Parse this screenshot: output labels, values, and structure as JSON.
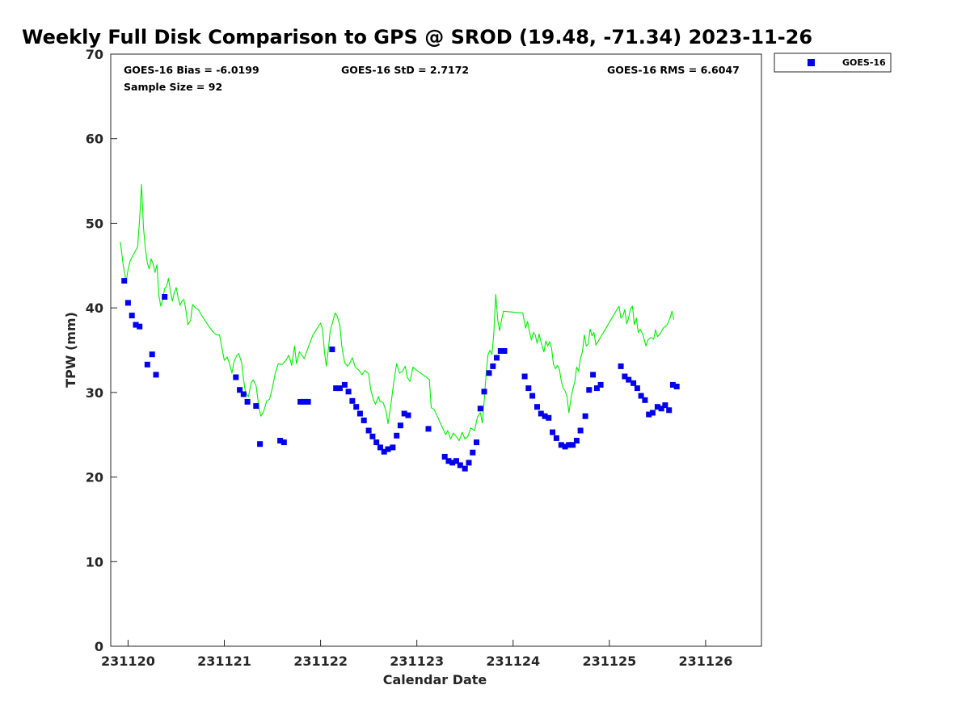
{
  "chart_data": {
    "type": "scatter",
    "title": "Weekly Full Disk Comparison to GPS @ SROD (19.48, -71.34) 2023-11-26",
    "xlabel": "Calendar Date",
    "ylabel": "TPW (mm)",
    "x_ticks": [
      "231120",
      "231121",
      "231122",
      "231123",
      "231124",
      "231125",
      "231126"
    ],
    "xlim": [
      -0.18,
      6.58
    ],
    "ylim": [
      0,
      70
    ],
    "y_ticks": [
      0,
      10,
      20,
      30,
      40,
      50,
      60,
      70
    ],
    "legend_position": "top-right",
    "stats": {
      "bias": "GOES-16 Bias = -6.0199",
      "std": "GOES-16 StD = 2.7172",
      "rms": "GOES-16 RMS = 6.6047",
      "sample": "Sample Size = 92"
    },
    "series": [
      {
        "name": "GOES-16",
        "kind": "markers",
        "color": "#0000ee",
        "points": [
          [
            -0.04,
            43.2
          ],
          [
            0,
            40.6
          ],
          [
            0.04,
            39.1
          ],
          [
            0.08,
            38.0
          ],
          [
            0.12,
            37.8
          ],
          [
            0.2,
            33.3
          ],
          [
            0.25,
            34.5
          ],
          [
            0.29,
            32.1
          ],
          [
            0.38,
            41.3
          ],
          [
            1.12,
            31.8
          ],
          [
            1.16,
            30.3
          ],
          [
            1.2,
            29.8
          ],
          [
            1.24,
            28.9
          ],
          [
            1.33,
            28.4
          ],
          [
            1.37,
            23.9
          ],
          [
            1.58,
            24.3
          ],
          [
            1.62,
            24.1
          ],
          [
            1.79,
            28.9
          ],
          [
            1.83,
            28.9
          ],
          [
            1.87,
            28.9
          ],
          [
            2.12,
            35.1
          ],
          [
            2.16,
            30.5
          ],
          [
            2.2,
            30.5
          ],
          [
            2.25,
            30.9
          ],
          [
            2.29,
            30.1
          ],
          [
            2.33,
            29.0
          ],
          [
            2.37,
            28.3
          ],
          [
            2.41,
            27.5
          ],
          [
            2.45,
            26.7
          ],
          [
            2.5,
            25.5
          ],
          [
            2.54,
            24.8
          ],
          [
            2.58,
            24.1
          ],
          [
            2.62,
            23.5
          ],
          [
            2.66,
            23.0
          ],
          [
            2.7,
            23.3
          ],
          [
            2.75,
            23.5
          ],
          [
            2.79,
            24.9
          ],
          [
            2.83,
            26.1
          ],
          [
            2.87,
            27.5
          ],
          [
            2.91,
            27.3
          ],
          [
            3.12,
            25.7
          ],
          [
            3.29,
            22.4
          ],
          [
            3.33,
            21.9
          ],
          [
            3.37,
            21.7
          ],
          [
            3.41,
            21.9
          ],
          [
            3.45,
            21.4
          ],
          [
            3.5,
            21.0
          ],
          [
            3.54,
            21.7
          ],
          [
            3.58,
            22.9
          ],
          [
            3.62,
            24.1
          ],
          [
            3.66,
            28.1
          ],
          [
            3.7,
            30.1
          ],
          [
            3.75,
            32.3
          ],
          [
            3.79,
            33.1
          ],
          [
            3.83,
            34.1
          ],
          [
            3.87,
            34.9
          ],
          [
            3.91,
            34.9
          ],
          [
            4.12,
            31.9
          ],
          [
            4.16,
            30.5
          ],
          [
            4.2,
            29.6
          ],
          [
            4.25,
            28.3
          ],
          [
            4.29,
            27.5
          ],
          [
            4.33,
            27.2
          ],
          [
            4.37,
            27.0
          ],
          [
            4.41,
            25.3
          ],
          [
            4.45,
            24.6
          ],
          [
            4.5,
            23.8
          ],
          [
            4.54,
            23.6
          ],
          [
            4.58,
            23.8
          ],
          [
            4.62,
            23.8
          ],
          [
            4.66,
            24.3
          ],
          [
            4.7,
            25.5
          ],
          [
            4.75,
            27.2
          ],
          [
            4.79,
            30.3
          ],
          [
            4.83,
            32.1
          ],
          [
            4.87,
            30.5
          ],
          [
            4.91,
            30.9
          ],
          [
            5.12,
            33.1
          ],
          [
            5.16,
            31.9
          ],
          [
            5.2,
            31.5
          ],
          [
            5.25,
            31.1
          ],
          [
            5.29,
            30.5
          ],
          [
            5.33,
            29.6
          ],
          [
            5.37,
            29.1
          ],
          [
            5.41,
            27.4
          ],
          [
            5.45,
            27.6
          ],
          [
            5.5,
            28.3
          ],
          [
            5.54,
            28.1
          ],
          [
            5.58,
            28.5
          ],
          [
            5.62,
            27.9
          ],
          [
            5.66,
            30.9
          ],
          [
            5.7,
            30.7
          ]
        ]
      },
      {
        "name": "",
        "kind": "line",
        "color": "#00ee00",
        "points": [
          [
            -0.08,
            47.8
          ],
          [
            -0.05,
            45
          ],
          [
            -0.02,
            43.1
          ],
          [
            0,
            44.5
          ],
          [
            0.02,
            45.5
          ],
          [
            0.05,
            46.2
          ],
          [
            0.08,
            46.8
          ],
          [
            0.1,
            47.2
          ],
          [
            0.12,
            50.5
          ],
          [
            0.14,
            54.6
          ],
          [
            0.16,
            49.5
          ],
          [
            0.18,
            47.0
          ],
          [
            0.2,
            45.3
          ],
          [
            0.22,
            44.6
          ],
          [
            0.24,
            45.8
          ],
          [
            0.26,
            45.2
          ],
          [
            0.28,
            44.2
          ],
          [
            0.3,
            45.1
          ],
          [
            0.32,
            41.5
          ],
          [
            0.34,
            40.2
          ],
          [
            0.36,
            41.0
          ],
          [
            0.38,
            42.3
          ],
          [
            0.4,
            42.5
          ],
          [
            0.42,
            43.5
          ],
          [
            0.44,
            42.0
          ],
          [
            0.46,
            40.8
          ],
          [
            0.48,
            41.8
          ],
          [
            0.5,
            42.4
          ],
          [
            0.52,
            41.2
          ],
          [
            0.54,
            40.3
          ],
          [
            0.56,
            40.8
          ],
          [
            0.58,
            41.0
          ],
          [
            0.6,
            39.8
          ],
          [
            0.62,
            38.0
          ],
          [
            0.65,
            38.5
          ],
          [
            0.67,
            40.4
          ],
          [
            0.7,
            40.0
          ],
          [
            0.73,
            39.8
          ],
          [
            0.76,
            39.2
          ],
          [
            0.8,
            38.5
          ],
          [
            0.84,
            37.8
          ],
          [
            0.88,
            37.2
          ],
          [
            0.92,
            36.8
          ],
          [
            0.95,
            36.8
          ],
          [
            0.98,
            35.0
          ],
          [
            1.0,
            33.8
          ],
          [
            1.03,
            34.2
          ],
          [
            1.05,
            33.5
          ],
          [
            1.08,
            32.3
          ],
          [
            1.1,
            33.6
          ],
          [
            1.13,
            34.4
          ],
          [
            1.15,
            34.6
          ],
          [
            1.18,
            33.5
          ],
          [
            1.2,
            31.5
          ],
          [
            1.22,
            30.0
          ],
          [
            1.25,
            29.5
          ],
          [
            1.28,
            31.2
          ],
          [
            1.3,
            31.5
          ],
          [
            1.33,
            30.8
          ],
          [
            1.36,
            28.2
          ],
          [
            1.38,
            27.2
          ],
          [
            1.41,
            27.8
          ],
          [
            1.44,
            29.0
          ],
          [
            1.47,
            29.2
          ],
          [
            1.5,
            30.6
          ],
          [
            1.53,
            32.3
          ],
          [
            1.56,
            33.4
          ],
          [
            1.6,
            33.3
          ],
          [
            1.64,
            33.8
          ],
          [
            1.67,
            34.4
          ],
          [
            1.7,
            33.2
          ],
          [
            1.73,
            35.5
          ],
          [
            1.75,
            33.4
          ],
          [
            1.78,
            34.8
          ],
          [
            1.8,
            34.5
          ],
          [
            1.83,
            34.0
          ],
          [
            1.87,
            35.3
          ],
          [
            1.92,
            36.8
          ],
          [
            1.96,
            37.5
          ],
          [
            2.0,
            38.2
          ],
          [
            2.02,
            37.5
          ],
          [
            2.04,
            34.8
          ],
          [
            2.06,
            33.1
          ],
          [
            2.08,
            35.0
          ],
          [
            2.1,
            37.3
          ],
          [
            2.13,
            38.5
          ],
          [
            2.15,
            39.4
          ],
          [
            2.17,
            39.1
          ],
          [
            2.2,
            38.0
          ],
          [
            2.22,
            35.5
          ],
          [
            2.25,
            33.5
          ],
          [
            2.28,
            33.1
          ],
          [
            2.3,
            33.4
          ],
          [
            2.33,
            34.1
          ],
          [
            2.36,
            33.0
          ],
          [
            2.4,
            32.6
          ],
          [
            2.43,
            32.1
          ],
          [
            2.46,
            32.6
          ],
          [
            2.5,
            32.2
          ],
          [
            2.52,
            30.4
          ],
          [
            2.55,
            29.1
          ],
          [
            2.57,
            28.6
          ],
          [
            2.6,
            29.5
          ],
          [
            2.62,
            28.9
          ],
          [
            2.65,
            28.8
          ],
          [
            2.68,
            27.8
          ],
          [
            2.7,
            26.3
          ],
          [
            2.73,
            28.5
          ],
          [
            2.76,
            31.2
          ],
          [
            2.79,
            33.4
          ],
          [
            2.82,
            32.3
          ],
          [
            2.85,
            32.5
          ],
          [
            2.88,
            33.1
          ],
          [
            2.9,
            31.8
          ],
          [
            2.93,
            31.3
          ],
          [
            2.96,
            33.0
          ],
          [
            3.0,
            32.6
          ],
          [
            3.05,
            32.2
          ],
          [
            3.1,
            31.8
          ],
          [
            3.13,
            31.5
          ],
          [
            3.15,
            28.2
          ],
          [
            3.18,
            28.0
          ],
          [
            3.22,
            27.0
          ],
          [
            3.26,
            26.0
          ],
          [
            3.3,
            25.0
          ],
          [
            3.32,
            25.5
          ],
          [
            3.35,
            24.5
          ],
          [
            3.38,
            25.2
          ],
          [
            3.41,
            24.8
          ],
          [
            3.44,
            24.3
          ],
          [
            3.47,
            25.3
          ],
          [
            3.5,
            24.5
          ],
          [
            3.53,
            24.8
          ],
          [
            3.56,
            25.8
          ],
          [
            3.6,
            25.5
          ],
          [
            3.63,
            27.1
          ],
          [
            3.66,
            27.6
          ],
          [
            3.68,
            26.4
          ],
          [
            3.7,
            29.0
          ],
          [
            3.72,
            32.2
          ],
          [
            3.74,
            34.5
          ],
          [
            3.76,
            35.0
          ],
          [
            3.78,
            34.5
          ],
          [
            3.8,
            37.0
          ],
          [
            3.82,
            41.6
          ],
          [
            3.84,
            38.6
          ],
          [
            3.86,
            37.3
          ],
          [
            3.88,
            38.6
          ],
          [
            3.9,
            39.6
          ],
          [
            4.0,
            39.5
          ],
          [
            4.1,
            39.4
          ],
          [
            4.13,
            37.6
          ],
          [
            4.15,
            38.4
          ],
          [
            4.17,
            37.2
          ],
          [
            4.19,
            36.2
          ],
          [
            4.21,
            37.1
          ],
          [
            4.23,
            36.8
          ],
          [
            4.25,
            35.8
          ],
          [
            4.27,
            36.9
          ],
          [
            4.3,
            35.5
          ],
          [
            4.32,
            34.8
          ],
          [
            4.34,
            36.1
          ],
          [
            4.36,
            35.5
          ],
          [
            4.38,
            36.0
          ],
          [
            4.4,
            35.2
          ],
          [
            4.42,
            33.3
          ],
          [
            4.44,
            32.8
          ],
          [
            4.46,
            33.2
          ],
          [
            4.48,
            32.8
          ],
          [
            4.5,
            31.4
          ],
          [
            4.52,
            30.5
          ],
          [
            4.54,
            30.2
          ],
          [
            4.56,
            29.5
          ],
          [
            4.58,
            27.6
          ],
          [
            4.6,
            29.2
          ],
          [
            4.62,
            30.4
          ],
          [
            4.64,
            31.2
          ],
          [
            4.66,
            33.0
          ],
          [
            4.68,
            32.5
          ],
          [
            4.7,
            34.0
          ],
          [
            4.72,
            34.8
          ],
          [
            4.74,
            36.8
          ],
          [
            4.76,
            35.5
          ],
          [
            4.78,
            35.7
          ],
          [
            4.8,
            37.5
          ],
          [
            4.82,
            36.7
          ],
          [
            4.84,
            37.1
          ],
          [
            4.86,
            35.6
          ],
          [
            5.1,
            40.2
          ],
          [
            5.12,
            38.8
          ],
          [
            5.14,
            39.0
          ],
          [
            5.16,
            39.8
          ],
          [
            5.18,
            38.1
          ],
          [
            5.2,
            38.8
          ],
          [
            5.22,
            39.9
          ],
          [
            5.24,
            40.2
          ],
          [
            5.26,
            38.0
          ],
          [
            5.28,
            38.8
          ],
          [
            5.3,
            37.1
          ],
          [
            5.32,
            37.5
          ],
          [
            5.35,
            36.8
          ],
          [
            5.38,
            35.5
          ],
          [
            5.4,
            36.2
          ],
          [
            5.43,
            36.5
          ],
          [
            5.46,
            36.3
          ],
          [
            5.48,
            37.4
          ],
          [
            5.5,
            36.6
          ],
          [
            5.53,
            37.0
          ],
          [
            5.56,
            37.6
          ],
          [
            5.6,
            38.0
          ],
          [
            5.63,
            38.8
          ],
          [
            5.65,
            39.6
          ],
          [
            5.67,
            38.6
          ]
        ]
      }
    ]
  }
}
